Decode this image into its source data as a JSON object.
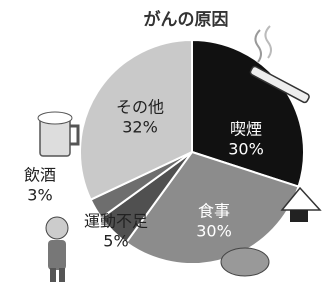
{
  "chart_data": {
    "type": "pie",
    "title": "がんの原因",
    "categories": [
      "喫煙",
      "食事",
      "運動不足",
      "飲酒",
      "その他"
    ],
    "values": [
      30,
      30,
      5,
      3,
      32
    ],
    "value_labels": [
      "30%",
      "30%",
      "5%",
      "3%",
      "32%"
    ],
    "colors": [
      "#111111",
      "#8c8c8c",
      "#505050",
      "#6e6e6e",
      "#c9c9c9"
    ]
  }
}
